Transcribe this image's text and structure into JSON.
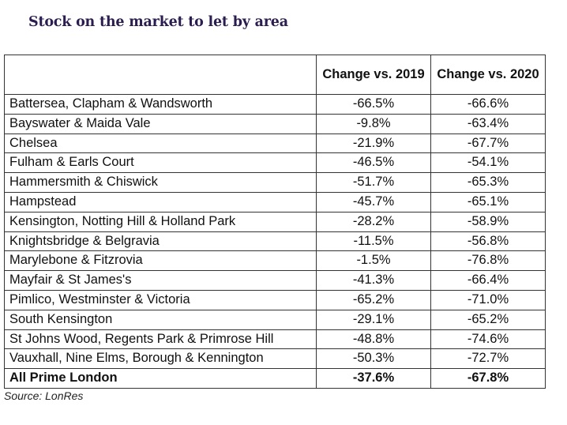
{
  "title": "Stock on the market to let by area",
  "table": {
    "headers": {
      "area": "",
      "change_2019": "Change vs. 2019",
      "change_2020": "Change vs. 2020"
    },
    "rows": [
      {
        "area": "Battersea, Clapham & Wandsworth",
        "change_2019": "-66.5%",
        "change_2020": "-66.6%"
      },
      {
        "area": "Bayswater & Maida Vale",
        "change_2019": "-9.8%",
        "change_2020": "-63.4%"
      },
      {
        "area": "Chelsea",
        "change_2019": "-21.9%",
        "change_2020": "-67.7%"
      },
      {
        "area": "Fulham & Earls Court",
        "change_2019": "-46.5%",
        "change_2020": "-54.1%"
      },
      {
        "area": "Hammersmith & Chiswick",
        "change_2019": "-51.7%",
        "change_2020": "-65.3%"
      },
      {
        "area": "Hampstead",
        "change_2019": "-45.7%",
        "change_2020": "-65.1%"
      },
      {
        "area": "Kensington, Notting Hill & Holland Park",
        "change_2019": "-28.2%",
        "change_2020": "-58.9%"
      },
      {
        "area": "Knightsbridge & Belgravia",
        "change_2019": "-11.5%",
        "change_2020": "-56.8%"
      },
      {
        "area": "Marylebone & Fitzrovia",
        "change_2019": "-1.5%",
        "change_2020": "-76.8%"
      },
      {
        "area": "Mayfair & St James's",
        "change_2019": "-41.3%",
        "change_2020": "-66.4%"
      },
      {
        "area": "Pimlico, Westminster & Victoria",
        "change_2019": "-65.2%",
        "change_2020": "-71.0%"
      },
      {
        "area": "South Kensington",
        "change_2019": "-29.1%",
        "change_2020": "-65.2%"
      },
      {
        "area": "St Johns Wood, Regents Park & Primrose Hill",
        "change_2019": "-48.8%",
        "change_2020": "-74.6%"
      },
      {
        "area": "Vauxhall, Nine Elms, Borough & Kennington",
        "change_2019": "-50.3%",
        "change_2020": "-72.7%"
      }
    ],
    "total": {
      "area": "All Prime London",
      "change_2019": "-37.6%",
      "change_2020": "-67.8%"
    }
  },
  "source": "Source: LonRes",
  "colors": {
    "title": "#2b1d4f",
    "border": "#333333",
    "text": "#111111"
  }
}
